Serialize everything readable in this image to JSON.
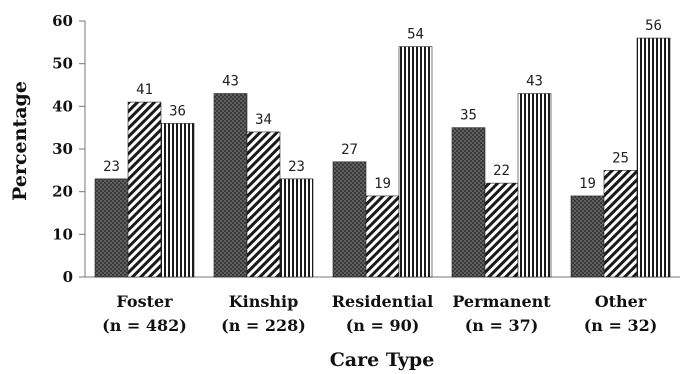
{
  "chart_data": {
    "type": "bar",
    "categories": [
      [
        "Foster",
        "(n = 482)"
      ],
      [
        "Kinship",
        "(n = 228)"
      ],
      [
        "Residential",
        "(n = 90)"
      ],
      [
        "Permanent",
        "(n = 37)"
      ],
      [
        "Other",
        "(n = 32)"
      ]
    ],
    "series": [
      {
        "pattern": "dotted-dark",
        "values": [
          23,
          43,
          27,
          35,
          19
        ]
      },
      {
        "pattern": "diagonal-stripes",
        "values": [
          41,
          34,
          19,
          22,
          25
        ]
      },
      {
        "pattern": "vertical-stripes",
        "values": [
          36,
          23,
          54,
          43,
          56
        ]
      }
    ],
    "title": "",
    "xlabel": "Care Type",
    "ylabel": "Percentage",
    "ylim": [
      0,
      60
    ],
    "yticks": [
      0,
      10,
      20,
      30,
      40,
      50,
      60
    ],
    "grid": false,
    "colors": {
      "axis": "#777777",
      "text": "#111111",
      "bar_dark": "#3a3a3a",
      "bar_light": "#ffffff"
    }
  }
}
